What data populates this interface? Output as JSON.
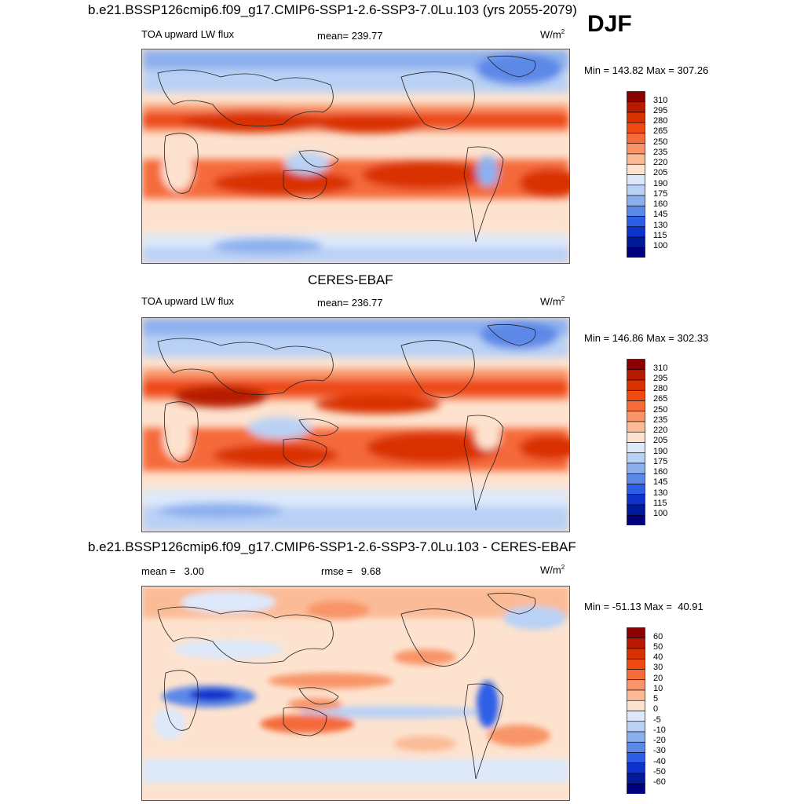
{
  "figure": {
    "title_top": "b.e21.BSSP126cmip6.f09_g17.CMIP6-SSP1-2.6-SSP3-7.0Lu.103 (yrs 2055-2079)",
    "season": "DJF"
  },
  "panels": [
    {
      "id": "model",
      "variable": "TOA upward LW flux",
      "mean_text": "mean= 239.77",
      "units": "W/m",
      "units_sup": "2",
      "minmax_text": "Min = 143.82 Max = 307.26"
    },
    {
      "id": "obs",
      "heading": "CERES-EBAF",
      "variable": "TOA upward LW flux",
      "mean_text": "mean= 236.77",
      "units": "W/m",
      "units_sup": "2",
      "minmax_text": "Min = 146.86 Max = 302.33"
    },
    {
      "id": "diff",
      "heading": "b.e21.BSSP126cmip6.f09_g17.CMIP6-SSP1-2.6-SSP3-7.0Lu.103 - CERES-EBAF",
      "mean_text": "mean =   3.00",
      "rmse_text": "rmse =   9.68",
      "units": "W/m",
      "units_sup": "2",
      "minmax_text": "Min = -51.13 Max =  40.91"
    }
  ],
  "colorbars": {
    "abs_levels": [
      "310",
      "295",
      "280",
      "265",
      "250",
      "235",
      "220",
      "205",
      "190",
      "175",
      "160",
      "145",
      "130",
      "115",
      "100"
    ],
    "diff_levels": [
      "60",
      "50",
      "40",
      "30",
      "20",
      "10",
      "5",
      "0",
      "-5",
      "-10",
      "-20",
      "-30",
      "-40",
      "-50",
      "-60"
    ],
    "colors": [
      "#8b0000",
      "#b81a00",
      "#d93200",
      "#ee4a12",
      "#f56b3a",
      "#f89468",
      "#fbbb97",
      "#fde3cf",
      "#dde9fb",
      "#b9d1f5",
      "#8cb0ee",
      "#5c88e8",
      "#2d5ee6",
      "#0d33cc",
      "#001a99",
      "#00007f"
    ]
  },
  "chart_data": [
    {
      "type": "heatmap",
      "title": "TOA upward LW flux (model, DJF)",
      "units": "W/m2",
      "mean": 239.77,
      "min": 143.82,
      "max": 307.26,
      "levels": [
        100,
        115,
        130,
        145,
        160,
        175,
        190,
        205,
        220,
        235,
        250,
        265,
        280,
        295,
        310
      ]
    },
    {
      "type": "heatmap",
      "title": "TOA upward LW flux (CERES-EBAF, DJF)",
      "units": "W/m2",
      "mean": 236.77,
      "min": 146.86,
      "max": 302.33,
      "levels": [
        100,
        115,
        130,
        145,
        160,
        175,
        190,
        205,
        220,
        235,
        250,
        265,
        280,
        295,
        310
      ]
    },
    {
      "type": "heatmap",
      "title": "Model - CERES-EBAF difference",
      "units": "W/m2",
      "mean": 3.0,
      "rmse": 9.68,
      "min": -51.13,
      "max": 40.91,
      "levels": [
        -60,
        -50,
        -40,
        -30,
        -20,
        -10,
        -5,
        0,
        5,
        10,
        20,
        30,
        40,
        50,
        60
      ]
    }
  ]
}
